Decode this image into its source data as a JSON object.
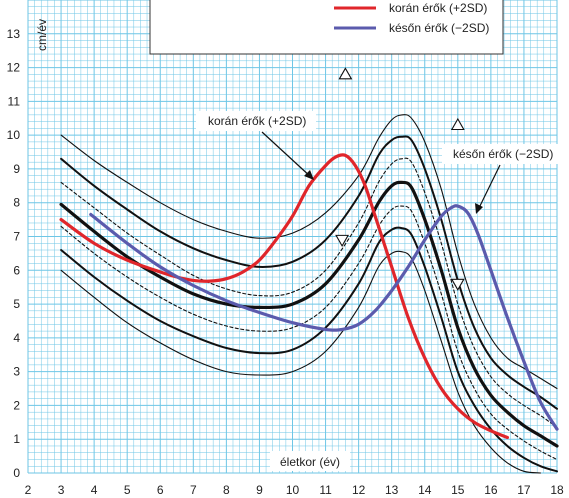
{
  "chart_data": {
    "type": "line",
    "title": "",
    "xlabel": "életkor (év)",
    "ylabel": "cm/év",
    "xlim": [
      2,
      18
    ],
    "ylim": [
      0,
      14
    ],
    "x_ticks": [
      "2",
      "3",
      "4",
      "5",
      "6",
      "7",
      "8",
      "9",
      "10",
      "11",
      "12",
      "13",
      "14",
      "15",
      "16",
      "17",
      "18"
    ],
    "y_ticks": [
      "0",
      "1",
      "2",
      "3",
      "4",
      "5",
      "6",
      "7",
      "8",
      "9",
      "10",
      "11",
      "12",
      "13"
    ],
    "grid": true,
    "legend": {
      "placement": "top",
      "entries": [
        {
          "label": "korán érők (+2SD)",
          "color": "#e0262b"
        },
        {
          "label": "későn érők (−2SD)",
          "color": "#5b5bad"
        }
      ]
    },
    "annotations": [
      {
        "text": "korán érők (+2SD)",
        "points_to": [
          11.0,
          8.9
        ]
      },
      {
        "text": "későn érők (−2SD)",
        "points_to": [
          14.6,
          7.8
        ]
      }
    ],
    "markers": [
      {
        "shape": "triangle-up",
        "x": 11.6,
        "y": 11.8
      },
      {
        "shape": "triangle-up",
        "x": 15.0,
        "y": 10.3
      },
      {
        "shape": "triangle-down",
        "x": 11.5,
        "y": 6.9
      },
      {
        "shape": "triangle-down",
        "x": 15.0,
        "y": 5.6
      }
    ],
    "series": [
      {
        "style": "thin",
        "x": [
          3,
          4,
          5,
          6,
          7,
          8,
          9,
          10,
          11,
          12,
          12.6,
          13,
          13.3,
          13.6,
          14,
          14.5,
          15,
          15.5,
          16,
          16.5,
          17,
          17.5,
          18
        ],
        "y": [
          10.0,
          9.25,
          8.6,
          8.0,
          7.5,
          7.15,
          6.95,
          7.1,
          7.7,
          8.8,
          9.9,
          10.45,
          10.6,
          10.5,
          9.8,
          8.4,
          6.5,
          5.0,
          4.0,
          3.4,
          3.1,
          2.8,
          2.5
        ]
      },
      {
        "style": "medium",
        "x": [
          3,
          4,
          5,
          6,
          7,
          8,
          9,
          10,
          11,
          12,
          12.6,
          13,
          13.3,
          13.6,
          14,
          14.5,
          15,
          15.5,
          16,
          16.5,
          17,
          17.5,
          18
        ],
        "y": [
          9.3,
          8.5,
          7.8,
          7.15,
          6.65,
          6.3,
          6.1,
          6.25,
          6.9,
          8.2,
          9.4,
          9.85,
          9.95,
          9.85,
          9.0,
          7.5,
          5.7,
          4.3,
          3.4,
          2.9,
          2.55,
          2.25,
          1.9
        ]
      },
      {
        "style": "dashed",
        "x": [
          3,
          4,
          5,
          6,
          7,
          8,
          9,
          10,
          11,
          12,
          12.6,
          13,
          13.3,
          13.6,
          14,
          14.5,
          15,
          15.5,
          16,
          16.5,
          17,
          17.5,
          18
        ],
        "y": [
          8.6,
          7.85,
          7.1,
          6.45,
          5.85,
          5.45,
          5.25,
          5.35,
          6.0,
          7.4,
          8.6,
          9.15,
          9.3,
          9.2,
          8.3,
          6.8,
          5.0,
          3.7,
          2.85,
          2.35,
          2.0,
          1.7,
          1.35
        ]
      },
      {
        "style": "thick",
        "x": [
          3,
          4,
          5,
          6,
          7,
          8,
          9,
          10,
          11,
          12,
          12.6,
          13,
          13.3,
          13.6,
          14,
          14.5,
          15,
          15.5,
          16,
          16.5,
          17,
          17.5,
          18
        ],
        "y": [
          7.95,
          7.15,
          6.4,
          5.8,
          5.3,
          5.0,
          4.9,
          5.0,
          5.6,
          6.9,
          8.0,
          8.5,
          8.6,
          8.45,
          7.5,
          6.0,
          4.3,
          3.1,
          2.3,
          1.8,
          1.4,
          1.1,
          0.8
        ]
      },
      {
        "style": "dashed",
        "x": [
          3,
          4,
          5,
          6,
          7,
          8,
          9,
          10,
          11,
          12,
          12.6,
          13,
          13.3,
          13.6,
          14,
          14.5,
          15,
          15.5,
          16,
          16.5,
          17,
          17.5,
          18
        ],
        "y": [
          7.3,
          6.5,
          5.8,
          5.2,
          4.7,
          4.35,
          4.2,
          4.3,
          4.9,
          6.2,
          7.3,
          7.8,
          7.9,
          7.75,
          6.8,
          5.3,
          3.6,
          2.5,
          1.75,
          1.3,
          0.95,
          0.65,
          0.4
        ]
      },
      {
        "style": "medium",
        "x": [
          3,
          4,
          5,
          6,
          7,
          8,
          9,
          10,
          11,
          12,
          12.6,
          13,
          13.3,
          13.6,
          14,
          14.5,
          15,
          15.5,
          16,
          16.5,
          17,
          17.5,
          18
        ],
        "y": [
          6.6,
          5.8,
          5.1,
          4.5,
          4.05,
          3.7,
          3.55,
          3.65,
          4.3,
          5.6,
          6.8,
          7.2,
          7.25,
          7.05,
          6.1,
          4.6,
          3.0,
          2.0,
          1.3,
          0.8,
          0.45,
          0.2,
          0.05
        ]
      },
      {
        "style": "thin",
        "x": [
          3,
          4,
          5,
          6,
          7,
          8,
          9,
          10,
          11,
          12,
          12.6,
          13,
          13.3,
          13.6,
          14,
          14.5,
          15,
          15.5,
          16,
          16.5,
          17,
          17.5
        ],
        "y": [
          6.0,
          5.2,
          4.45,
          3.85,
          3.35,
          3.0,
          2.9,
          3.0,
          3.6,
          4.9,
          6.1,
          6.5,
          6.55,
          6.35,
          5.4,
          3.9,
          2.4,
          1.4,
          0.75,
          0.3,
          0.05,
          0.0
        ]
      },
      {
        "style": "red",
        "x": [
          3,
          4,
          5,
          6,
          6.5,
          7,
          7.5,
          8,
          8.5,
          9,
          9.5,
          10,
          10.5,
          11,
          11.3,
          11.6,
          11.9,
          12.2,
          12.5,
          13,
          13.5,
          14,
          14.5,
          15,
          15.5,
          16,
          16.5
        ],
        "y": [
          7.5,
          6.8,
          6.3,
          5.95,
          5.8,
          5.7,
          5.68,
          5.75,
          5.95,
          6.3,
          6.9,
          7.6,
          8.5,
          9.1,
          9.35,
          9.4,
          9.1,
          8.5,
          7.6,
          6.1,
          4.6,
          3.4,
          2.5,
          1.9,
          1.5,
          1.25,
          1.05
        ]
      },
      {
        "style": "blue",
        "x": [
          3.9,
          5,
          6,
          7,
          8,
          9,
          10,
          11,
          11.5,
          12,
          12.5,
          13,
          13.5,
          14,
          14.5,
          14.8,
          15,
          15.3,
          15.6,
          16,
          16.5,
          17,
          17.5,
          18
        ],
        "y": [
          7.65,
          6.8,
          6.1,
          5.55,
          5.1,
          4.75,
          4.45,
          4.25,
          4.25,
          4.4,
          4.8,
          5.4,
          6.1,
          6.9,
          7.6,
          7.85,
          7.9,
          7.7,
          7.1,
          6.0,
          4.6,
          3.3,
          2.1,
          1.3
        ]
      }
    ]
  }
}
